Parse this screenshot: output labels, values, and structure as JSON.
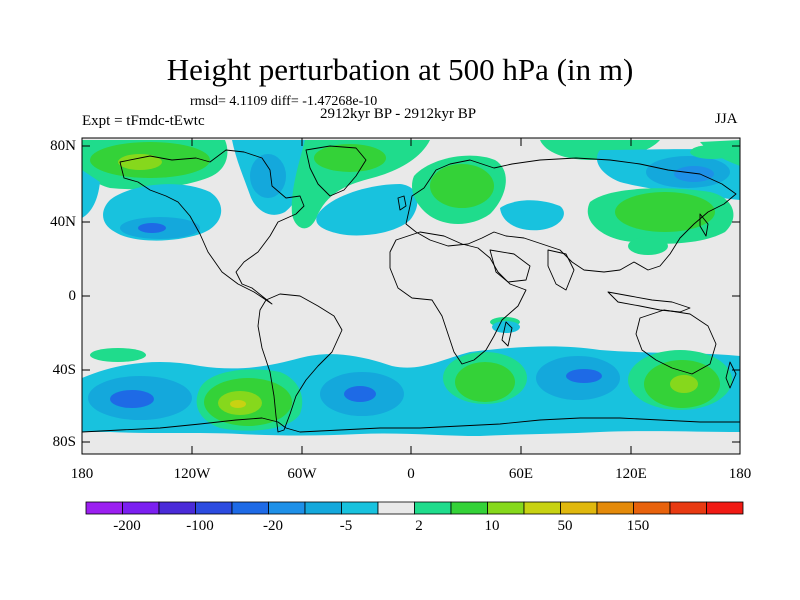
{
  "title": "Height perturbation at 500 hPa (in m)",
  "stats": "rmsd= 4.1109 diff= -1.47268e-10",
  "period": "2912kyr BP - 2912kyr BP",
  "experiment": "Expt = tFmdc-tEwtc",
  "season": "JJA",
  "lat_ticks": [
    "80N",
    "40N",
    "0",
    "40S",
    "80S"
  ],
  "lon_ticks": [
    "180",
    "120W",
    "60W",
    "0",
    "60E",
    "120E",
    "180"
  ],
  "colorbar": {
    "labels": [
      "-200",
      "-100",
      "-20",
      "-5",
      "2",
      "10",
      "50",
      "150"
    ],
    "colors": [
      "#9b1ff0",
      "#7b1ff0",
      "#4a2bd8",
      "#2c4be0",
      "#1e6ae6",
      "#1e90e8",
      "#14a8dc",
      "#18c2de",
      "#e9e9e9",
      "#1fdc8c",
      "#34d238",
      "#86d81c",
      "#c8d212",
      "#e0b80e",
      "#e48a0a",
      "#e8620c",
      "#e83a12",
      "#f01a14"
    ]
  },
  "map_colors": {
    "neutral": "#e9e9e9",
    "blue_light": "#18c2de",
    "blue_mid": "#14a8dc",
    "blue_deep": "#1e90e8",
    "blue_core": "#1e6ae6",
    "green_light": "#1fdc8c",
    "green": "#34d238",
    "yellow_green": "#86d81c",
    "yellow": "#c8d212",
    "orange": "#e0b80e"
  }
}
